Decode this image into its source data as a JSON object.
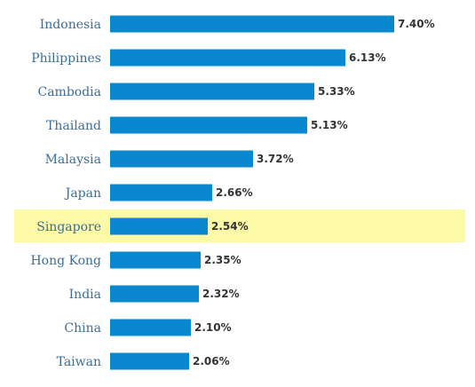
{
  "chart_data": {
    "type": "bar",
    "orientation": "horizontal",
    "categories": [
      "Indonesia",
      "Philippines",
      "Cambodia",
      "Thailand",
      "Malaysia",
      "Japan",
      "Singapore",
      "Hong Kong",
      "India",
      "China",
      "Taiwan"
    ],
    "values": [
      7.4,
      6.13,
      5.33,
      5.13,
      3.72,
      2.66,
      2.54,
      2.35,
      2.32,
      2.1,
      2.06
    ],
    "value_labels": [
      "7.40%",
      "6.13%",
      "5.33%",
      "5.13%",
      "3.72%",
      "2.66%",
      "2.54%",
      "2.35%",
      "2.32%",
      "2.10%",
      "2.06%"
    ],
    "highlighted_category": "Singapore",
    "xlim": [
      0,
      7.4
    ],
    "grid": false,
    "colors": {
      "bar": "#0a88cf",
      "highlight_band": "#fcf9a7",
      "category_text": "#3a6d9a",
      "value_text": "#333333"
    }
  }
}
